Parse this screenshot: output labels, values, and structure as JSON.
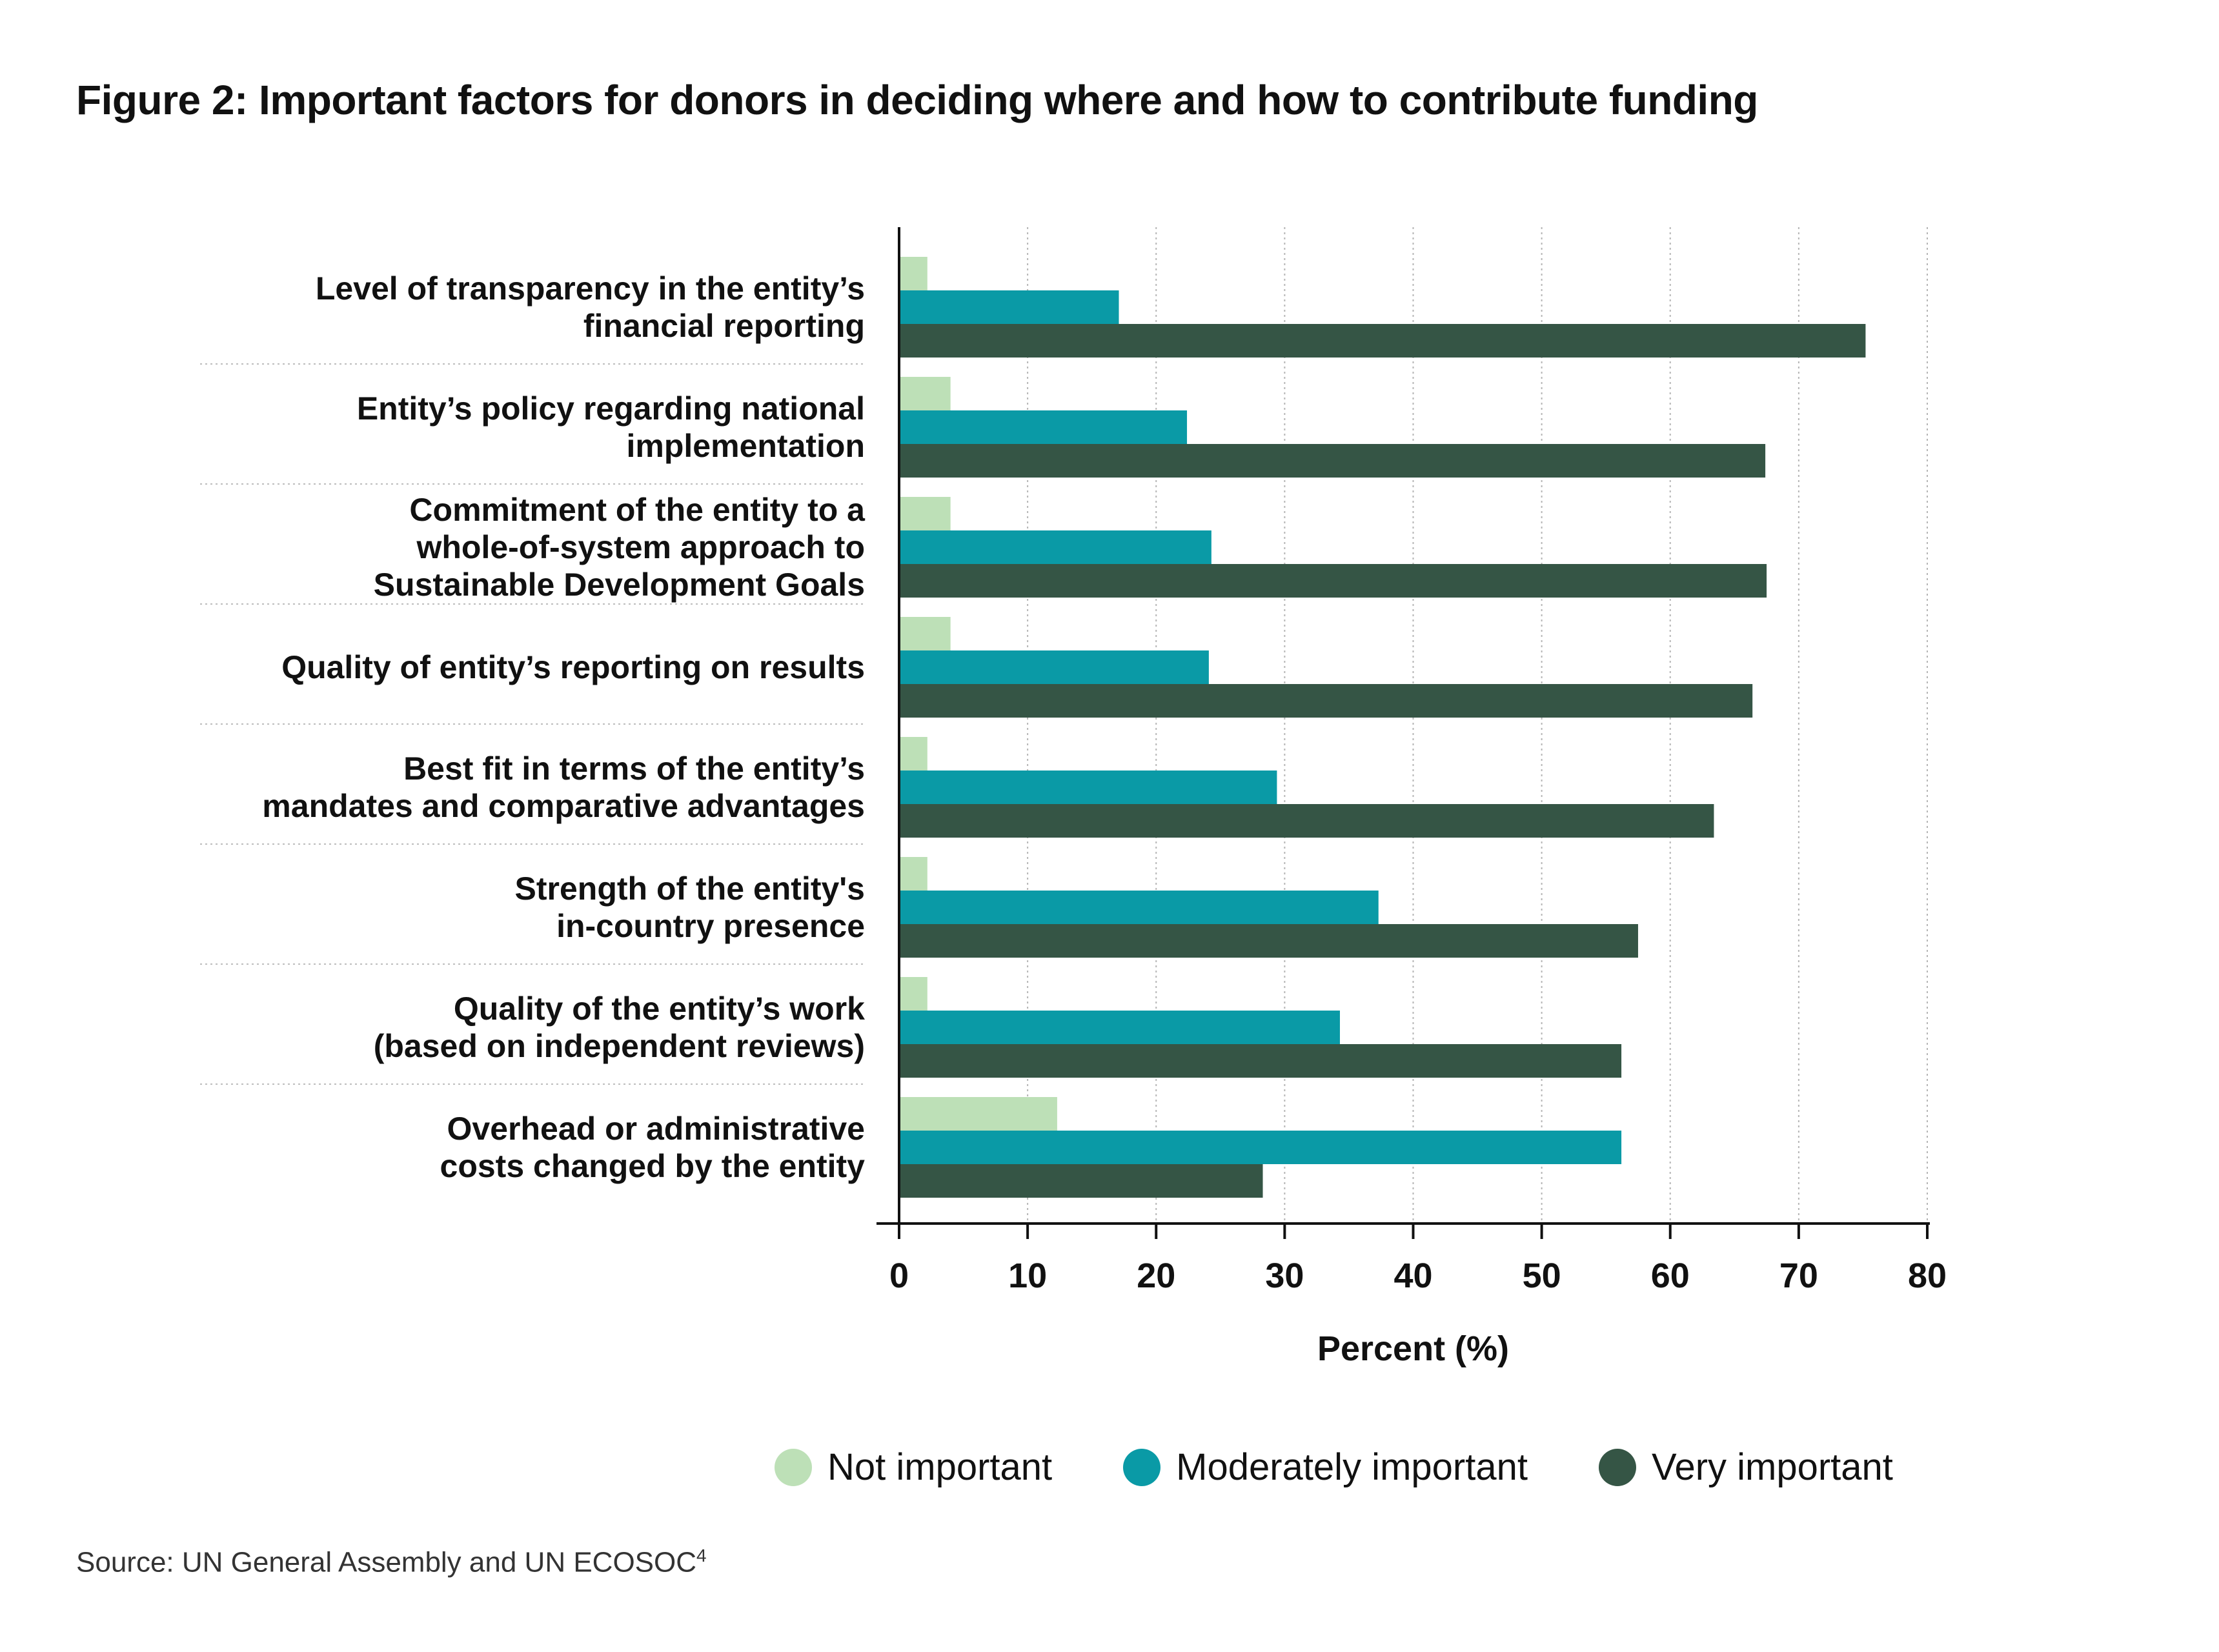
{
  "title": "Figure 2: Important factors for donors in deciding where and how to contribute funding",
  "source": {
    "text": "Source: UN General Assembly and UN ECOSOC",
    "superscript": "4"
  },
  "chart_data": {
    "type": "bar",
    "orientation": "horizontal",
    "xlabel": "Percent (%)",
    "xlim": [
      0,
      80
    ],
    "xticks": [
      0,
      10,
      20,
      30,
      40,
      50,
      60,
      70,
      80
    ],
    "grid": "vertical dotted",
    "legend_position": "bottom",
    "categories": [
      [
        "Level of transparency in the entity’s",
        "financial reporting"
      ],
      [
        "Entity’s policy regarding national",
        "implementation"
      ],
      [
        "Commitment of the entity to a",
        "whole-of-system approach to",
        "Sustainable Development Goals"
      ],
      [
        "Quality of entity’s reporting on results"
      ],
      [
        "Best fit in terms of the entity’s",
        "mandates  and comparative advantages"
      ],
      [
        "Strength of the entity's",
        "in-country presence"
      ],
      [
        "Quality of the entity’s work",
        "(based on independent reviews)"
      ],
      [
        "Overhead or administrative",
        "costs changed by the entity"
      ]
    ],
    "series": [
      {
        "name": "Not important",
        "color": "#bde0b7",
        "values": [
          2.2,
          4.0,
          4.0,
          4.0,
          2.2,
          2.2,
          2.2,
          12.3
        ]
      },
      {
        "name": "Moderately important",
        "color": "#0a9aa6",
        "values": [
          17.1,
          22.4,
          24.3,
          24.1,
          29.4,
          37.3,
          34.3,
          56.2
        ]
      },
      {
        "name": "Very important",
        "color": "#355545",
        "values": [
          75.2,
          67.4,
          67.5,
          66.4,
          63.4,
          57.5,
          56.2,
          28.3
        ]
      }
    ]
  }
}
